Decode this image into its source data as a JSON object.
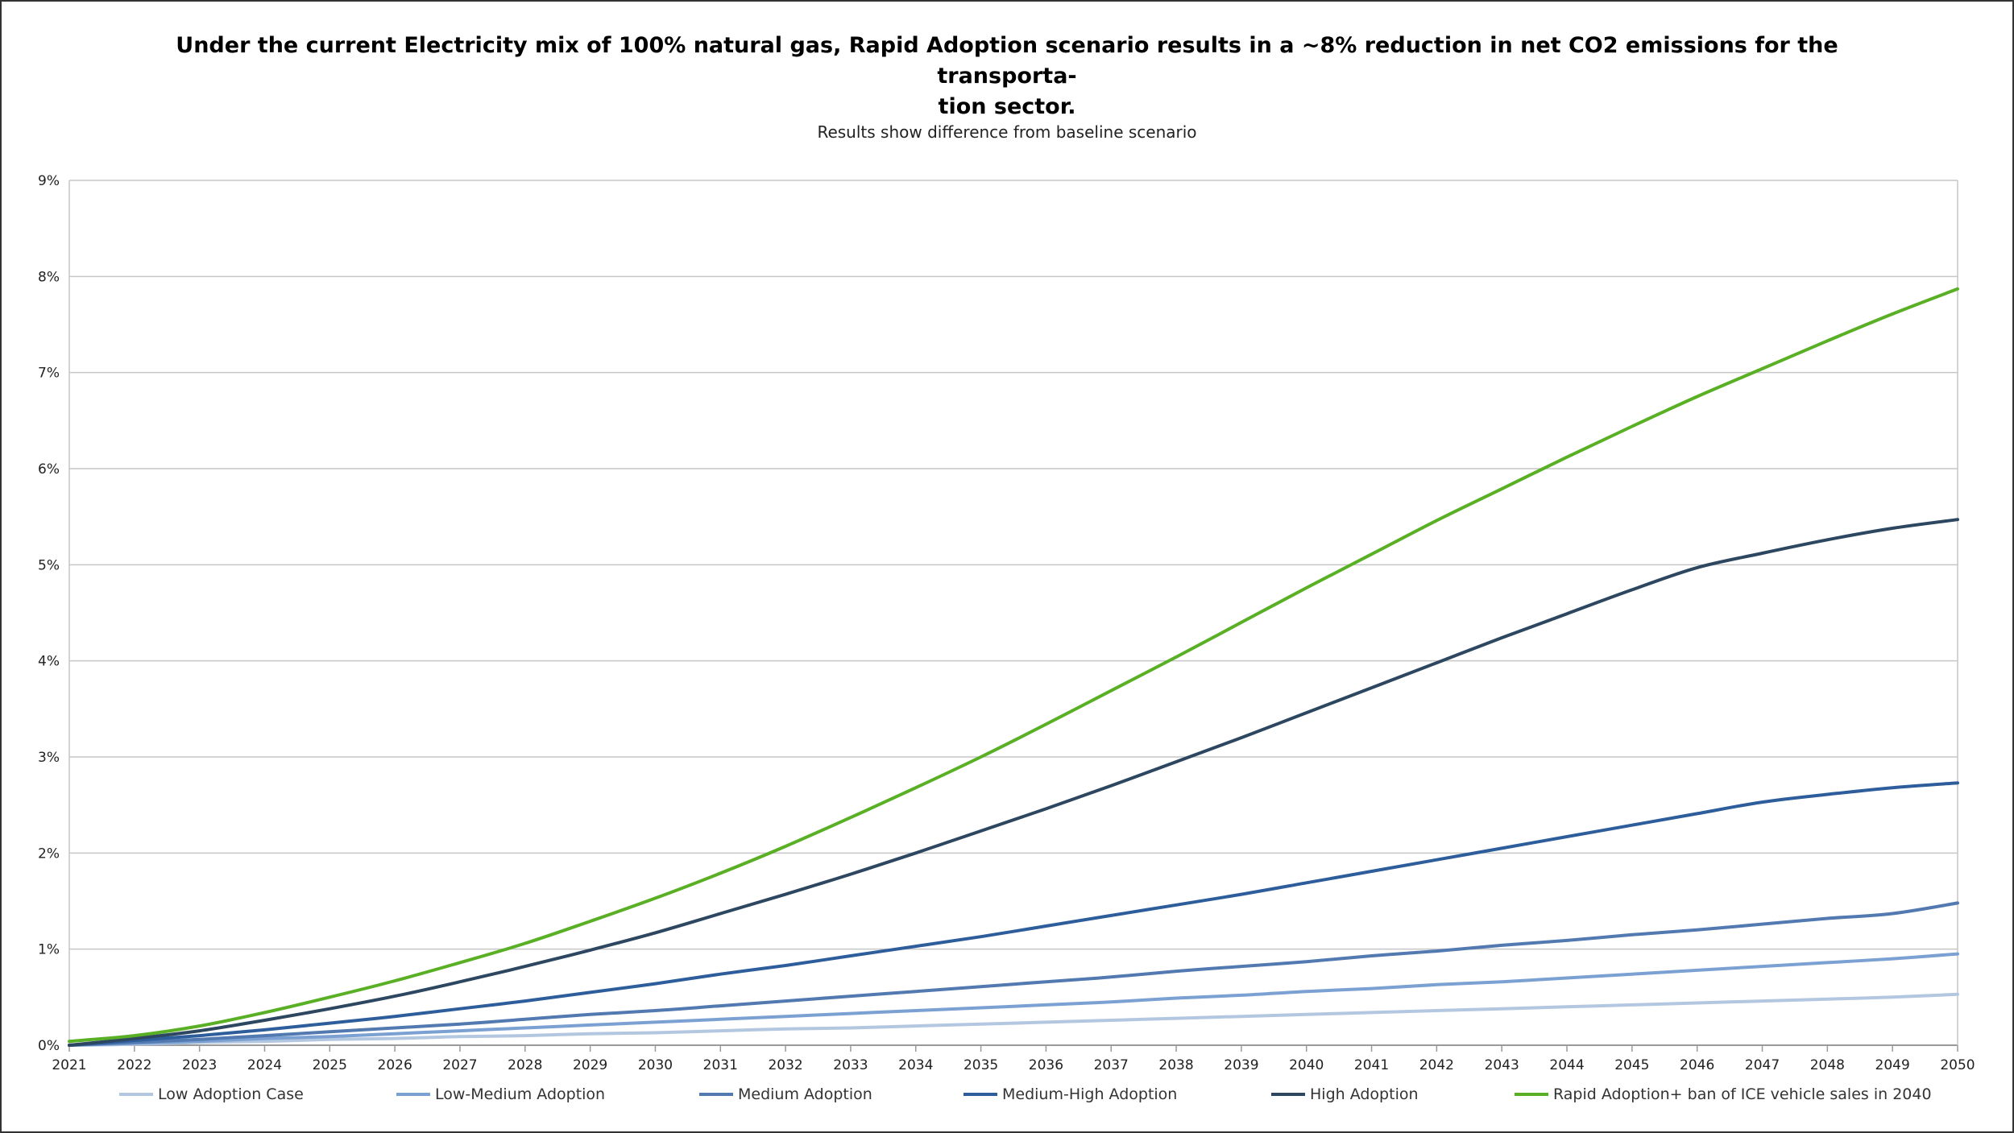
{
  "chart_data": {
    "type": "line",
    "title": "Under the current Electricity mix of 100% natural gas, Rapid Adoption scenario results in a ~8% reduction in net CO2 emissions for the transporta-tion sector.",
    "title_lines": [
      "Under the current Electricity mix of 100% natural gas, Rapid Adoption scenario results in a ~8% reduction in net CO2 emissions for the transporta-",
      "tion sector."
    ],
    "subtitle": "Results show difference from baseline scenario",
    "xlabel": "",
    "ylabel": "",
    "xlim": [
      2021,
      2050
    ],
    "ylim": [
      0,
      9
    ],
    "y_unit": "%",
    "y_ticks": [
      "0%",
      "1%",
      "2%",
      "3%",
      "4%",
      "5%",
      "6%",
      "7%",
      "8%",
      "9%"
    ],
    "x": [
      2021,
      2022,
      2023,
      2024,
      2025,
      2026,
      2027,
      2028,
      2029,
      2030,
      2031,
      2032,
      2033,
      2034,
      2035,
      2036,
      2037,
      2038,
      2039,
      2040,
      2041,
      2042,
      2043,
      2044,
      2045,
      2046,
      2047,
      2048,
      2049,
      2050
    ],
    "grid": true,
    "legend_position": "bottom",
    "series": [
      {
        "name": "Low Adoption Case",
        "color": "#b4c7e0",
        "values": [
          0.0,
          0.01,
          0.03,
          0.04,
          0.06,
          0.07,
          0.09,
          0.1,
          0.12,
          0.13,
          0.15,
          0.17,
          0.18,
          0.2,
          0.22,
          0.24,
          0.26,
          0.28,
          0.3,
          0.32,
          0.34,
          0.36,
          0.38,
          0.4,
          0.42,
          0.44,
          0.46,
          0.48,
          0.5,
          0.53
        ]
      },
      {
        "name": "Low-Medium Adoption",
        "color": "#7ba0d2",
        "values": [
          0.0,
          0.02,
          0.04,
          0.07,
          0.09,
          0.12,
          0.15,
          0.18,
          0.21,
          0.24,
          0.27,
          0.3,
          0.33,
          0.36,
          0.39,
          0.42,
          0.45,
          0.49,
          0.52,
          0.56,
          0.59,
          0.63,
          0.66,
          0.7,
          0.74,
          0.78,
          0.82,
          0.86,
          0.9,
          0.95
        ]
      },
      {
        "name": "Medium Adoption",
        "color": "#5279b0",
        "values": [
          0.0,
          0.03,
          0.06,
          0.1,
          0.14,
          0.18,
          0.22,
          0.27,
          0.32,
          0.36,
          0.41,
          0.46,
          0.51,
          0.56,
          0.61,
          0.66,
          0.71,
          0.77,
          0.82,
          0.87,
          0.93,
          0.98,
          1.04,
          1.09,
          1.15,
          1.2,
          1.26,
          1.32,
          1.37,
          1.48
        ]
      },
      {
        "name": "Medium-High Adoption",
        "color": "#2e5d9c",
        "values": [
          0.0,
          0.05,
          0.1,
          0.16,
          0.23,
          0.3,
          0.38,
          0.46,
          0.55,
          0.64,
          0.74,
          0.83,
          0.93,
          1.03,
          1.13,
          1.24,
          1.35,
          1.46,
          1.57,
          1.69,
          1.81,
          1.93,
          2.05,
          2.17,
          2.29,
          2.41,
          2.53,
          2.61,
          2.68,
          2.73
        ]
      },
      {
        "name": "High Adoption",
        "color": "#2d4760",
        "values": [
          0.0,
          0.07,
          0.15,
          0.26,
          0.38,
          0.51,
          0.66,
          0.82,
          0.99,
          1.17,
          1.37,
          1.57,
          1.78,
          2.0,
          2.23,
          2.46,
          2.7,
          2.95,
          3.2,
          3.46,
          3.72,
          3.98,
          4.24,
          4.49,
          4.74,
          4.97,
          5.12,
          5.26,
          5.38,
          5.47
        ]
      },
      {
        "name": "Rapid Adoption+ ban of ICE vehicle sales in 2040",
        "color": "#5ab025",
        "values": [
          0.04,
          0.1,
          0.2,
          0.34,
          0.5,
          0.67,
          0.86,
          1.06,
          1.29,
          1.53,
          1.79,
          2.07,
          2.37,
          2.68,
          3.0,
          3.34,
          3.69,
          4.04,
          4.4,
          4.76,
          5.11,
          5.46,
          5.79,
          6.12,
          6.44,
          6.75,
          7.04,
          7.33,
          7.61,
          7.87
        ]
      }
    ]
  }
}
